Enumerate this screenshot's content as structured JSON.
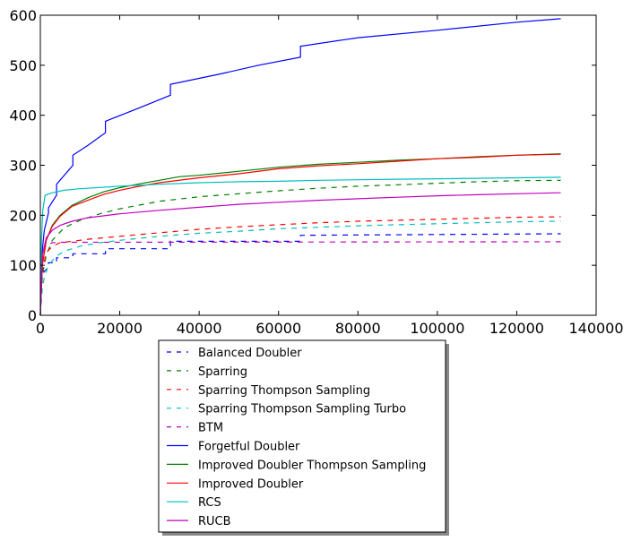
{
  "chart_data": {
    "type": "line",
    "title": "",
    "xlabel": "",
    "ylabel": "",
    "xlim": [
      0,
      140000
    ],
    "ylim": [
      0,
      600
    ],
    "x_ticks": [
      0,
      20000,
      40000,
      60000,
      80000,
      100000,
      120000,
      140000
    ],
    "x_tick_labels": [
      "0",
      "20000",
      "40000",
      "60000",
      "80000",
      "100000",
      "120000",
      "140000"
    ],
    "y_ticks": [
      0,
      100,
      200,
      300,
      400,
      500,
      600
    ],
    "y_tick_labels": [
      "0",
      "100",
      "200",
      "300",
      "400",
      "500",
      "600"
    ],
    "grid": false,
    "legend_placement": "below plot",
    "series": [
      {
        "name": "Balanced Doubler",
        "color": "#0000ff",
        "style": "dashed",
        "points": [
          [
            0,
            0
          ],
          [
            500,
            80
          ],
          [
            1000,
            88
          ],
          [
            2048,
            95
          ],
          [
            2048,
            105
          ],
          [
            4096,
            105
          ],
          [
            4096,
            115
          ],
          [
            8192,
            115
          ],
          [
            8192,
            123
          ],
          [
            16384,
            123
          ],
          [
            16384,
            133
          ],
          [
            32768,
            133
          ],
          [
            32768,
            148
          ],
          [
            65536,
            148
          ],
          [
            65536,
            160
          ],
          [
            131072,
            163
          ]
        ]
      },
      {
        "name": "Sparring",
        "color": "#008000",
        "style": "dashed",
        "points": [
          [
            0,
            0
          ],
          [
            500,
            80
          ],
          [
            1500,
            120
          ],
          [
            3000,
            150
          ],
          [
            6000,
            175
          ],
          [
            10000,
            190
          ],
          [
            15000,
            203
          ],
          [
            20000,
            213
          ],
          [
            30000,
            228
          ],
          [
            40000,
            237
          ],
          [
            50000,
            243
          ],
          [
            60000,
            249
          ],
          [
            70000,
            254
          ],
          [
            80000,
            258
          ],
          [
            90000,
            261
          ],
          [
            100000,
            264
          ],
          [
            110000,
            267
          ],
          [
            120000,
            269
          ],
          [
            131072,
            270
          ]
        ]
      },
      {
        "name": "Sparring Thompson Sampling",
        "color": "#ff0000",
        "style": "dashed",
        "points": [
          [
            0,
            0
          ],
          [
            500,
            90
          ],
          [
            1500,
            125
          ],
          [
            3000,
            138
          ],
          [
            5000,
            145
          ],
          [
            8000,
            148
          ],
          [
            12000,
            152
          ],
          [
            20000,
            158
          ],
          [
            30000,
            165
          ],
          [
            40000,
            172
          ],
          [
            50000,
            177
          ],
          [
            60000,
            181
          ],
          [
            70000,
            185
          ],
          [
            80000,
            188
          ],
          [
            90000,
            190
          ],
          [
            100000,
            192
          ],
          [
            110000,
            194
          ],
          [
            120000,
            196
          ],
          [
            131072,
            197
          ]
        ]
      },
      {
        "name": "Sparring Thompson Sampling Turbo",
        "color": "#00bfbf",
        "style": "dashed",
        "points": [
          [
            0,
            0
          ],
          [
            500,
            55
          ],
          [
            1000,
            75
          ],
          [
            2000,
            100
          ],
          [
            4000,
            118
          ],
          [
            6000,
            128
          ],
          [
            10000,
            138
          ],
          [
            15000,
            145
          ],
          [
            20000,
            150
          ],
          [
            30000,
            158
          ],
          [
            40000,
            164
          ],
          [
            50000,
            168
          ],
          [
            60000,
            173
          ],
          [
            70000,
            176
          ],
          [
            80000,
            179
          ],
          [
            90000,
            181
          ],
          [
            100000,
            183
          ],
          [
            110000,
            185
          ],
          [
            120000,
            187
          ],
          [
            131072,
            188
          ]
        ]
      },
      {
        "name": "BTM",
        "color": "#bf00bf",
        "style": "dashed",
        "points": [
          [
            0,
            0
          ],
          [
            300,
            100
          ],
          [
            800,
            130
          ],
          [
            1500,
            140
          ],
          [
            3000,
            145
          ],
          [
            5000,
            146
          ],
          [
            131072,
            147
          ]
        ]
      },
      {
        "name": "Forgetful Doubler",
        "color": "#0000ff",
        "style": "solid",
        "points": [
          [
            0,
            0
          ],
          [
            500,
            130
          ],
          [
            1000,
            170
          ],
          [
            2048,
            205
          ],
          [
            2048,
            215
          ],
          [
            4096,
            240
          ],
          [
            4096,
            262
          ],
          [
            8192,
            300
          ],
          [
            8192,
            320
          ],
          [
            12000,
            340
          ],
          [
            16384,
            365
          ],
          [
            16384,
            388
          ],
          [
            25000,
            415
          ],
          [
            32768,
            440
          ],
          [
            32768,
            462
          ],
          [
            45000,
            482
          ],
          [
            55000,
            500
          ],
          [
            65536,
            516
          ],
          [
            65536,
            538
          ],
          [
            80000,
            555
          ],
          [
            100000,
            570
          ],
          [
            120000,
            586
          ],
          [
            131072,
            593
          ]
        ]
      },
      {
        "name": "Improved Doubler Thompson Sampling",
        "color": "#008000",
        "style": "solid",
        "points": [
          [
            0,
            0
          ],
          [
            500,
            100
          ],
          [
            1500,
            150
          ],
          [
            3000,
            180
          ],
          [
            5000,
            200
          ],
          [
            8000,
            220
          ],
          [
            12000,
            235
          ],
          [
            16000,
            247
          ],
          [
            20000,
            255
          ],
          [
            25000,
            263
          ],
          [
            30000,
            270
          ],
          [
            35000,
            277
          ],
          [
            40000,
            280
          ],
          [
            50000,
            288
          ],
          [
            60000,
            296
          ],
          [
            70000,
            302
          ],
          [
            80000,
            306
          ],
          [
            90000,
            310
          ],
          [
            100000,
            313
          ],
          [
            110000,
            317
          ],
          [
            120000,
            320
          ],
          [
            131072,
            323
          ]
        ]
      },
      {
        "name": "Improved Doubler",
        "color": "#ff0000",
        "style": "solid",
        "points": [
          [
            0,
            0
          ],
          [
            500,
            100
          ],
          [
            1500,
            150
          ],
          [
            3000,
            178
          ],
          [
            5000,
            198
          ],
          [
            8000,
            218
          ],
          [
            12000,
            230
          ],
          [
            16000,
            242
          ],
          [
            20000,
            250
          ],
          [
            25000,
            258
          ],
          [
            30000,
            265
          ],
          [
            40000,
            275
          ],
          [
            50000,
            283
          ],
          [
            60000,
            293
          ],
          [
            70000,
            299
          ],
          [
            80000,
            303
          ],
          [
            90000,
            308
          ],
          [
            100000,
            313
          ],
          [
            110000,
            316
          ],
          [
            120000,
            320
          ],
          [
            131072,
            322
          ]
        ]
      },
      {
        "name": "RCS",
        "color": "#00bfbf",
        "style": "solid",
        "points": [
          [
            0,
            0
          ],
          [
            300,
            150
          ],
          [
            600,
            210
          ],
          [
            1200,
            240
          ],
          [
            3000,
            245
          ],
          [
            6000,
            250
          ],
          [
            10000,
            253
          ],
          [
            20000,
            258
          ],
          [
            30000,
            262
          ],
          [
            40000,
            265
          ],
          [
            50000,
            267
          ],
          [
            60000,
            268
          ],
          [
            70000,
            270
          ],
          [
            80000,
            271
          ],
          [
            90000,
            272
          ],
          [
            100000,
            273
          ],
          [
            120000,
            275
          ],
          [
            131072,
            276
          ]
        ]
      },
      {
        "name": "RUCB",
        "color": "#bf00bf",
        "style": "solid",
        "points": [
          [
            0,
            0
          ],
          [
            500,
            120
          ],
          [
            1500,
            155
          ],
          [
            3000,
            170
          ],
          [
            5000,
            180
          ],
          [
            8000,
            188
          ],
          [
            12000,
            195
          ],
          [
            20000,
            203
          ],
          [
            30000,
            210
          ],
          [
            40000,
            216
          ],
          [
            50000,
            222
          ],
          [
            60000,
            226
          ],
          [
            70000,
            230
          ],
          [
            80000,
            233
          ],
          [
            90000,
            236
          ],
          [
            100000,
            239
          ],
          [
            110000,
            241
          ],
          [
            120000,
            243
          ],
          [
            131072,
            245
          ]
        ]
      }
    ]
  }
}
